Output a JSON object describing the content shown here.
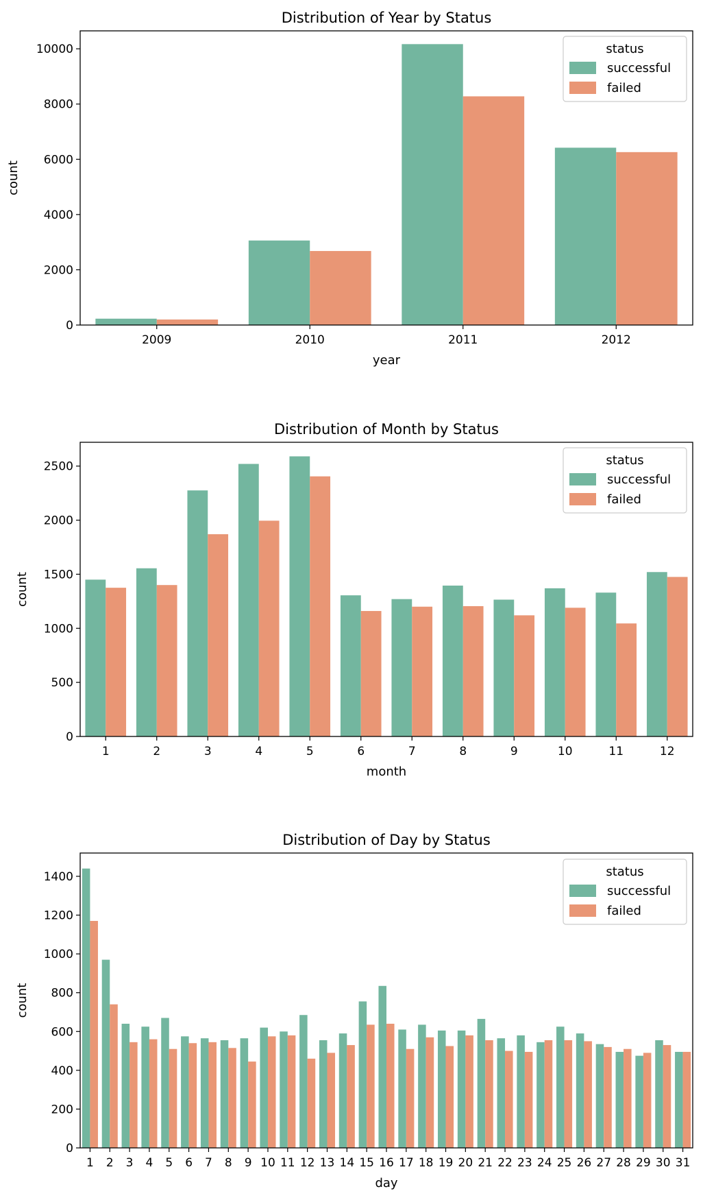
{
  "colors": {
    "successful": "#73b69f",
    "failed": "#e99675"
  },
  "chart_data": [
    {
      "type": "bar",
      "title": "Distribution of Year by Status",
      "xlabel": "year",
      "ylabel": "count",
      "categories": [
        "2009",
        "2010",
        "2011",
        "2012"
      ],
      "ylim": [
        0,
        10650
      ],
      "yticks": [
        0,
        2000,
        4000,
        6000,
        8000,
        10000
      ],
      "legend_title": "status",
      "legend_position": "upper right",
      "grid": false,
      "series": [
        {
          "name": "successful",
          "values": [
            230,
            3060,
            10170,
            6420
          ]
        },
        {
          "name": "failed",
          "values": [
            200,
            2680,
            8280,
            6260
          ]
        }
      ]
    },
    {
      "type": "bar",
      "title": "Distribution of Month by Status",
      "xlabel": "month",
      "ylabel": "count",
      "categories": [
        "1",
        "2",
        "3",
        "4",
        "5",
        "6",
        "7",
        "8",
        "9",
        "10",
        "11",
        "12"
      ],
      "ylim": [
        0,
        2720
      ],
      "yticks": [
        0,
        500,
        1000,
        1500,
        2000,
        2500
      ],
      "legend_title": "status",
      "legend_position": "upper right",
      "grid": false,
      "series": [
        {
          "name": "successful",
          "values": [
            1450,
            1555,
            2275,
            2520,
            2590,
            1305,
            1270,
            1395,
            1265,
            1370,
            1330,
            1520
          ]
        },
        {
          "name": "failed",
          "values": [
            1375,
            1400,
            1870,
            1995,
            2405,
            1160,
            1200,
            1205,
            1120,
            1190,
            1045,
            1475
          ]
        }
      ]
    },
    {
      "type": "bar",
      "title": "Distribution of Day by Status",
      "xlabel": "day",
      "ylabel": "count",
      "categories": [
        "1",
        "2",
        "3",
        "4",
        "5",
        "6",
        "7",
        "8",
        "9",
        "10",
        "11",
        "12",
        "13",
        "14",
        "15",
        "16",
        "17",
        "18",
        "19",
        "20",
        "21",
        "22",
        "23",
        "24",
        "25",
        "26",
        "27",
        "28",
        "29",
        "30",
        "31"
      ],
      "ylim": [
        0,
        1520
      ],
      "yticks": [
        0,
        200,
        400,
        600,
        800,
        1000,
        1200,
        1400
      ],
      "legend_title": "status",
      "legend_position": "upper right",
      "grid": false,
      "series": [
        {
          "name": "successful",
          "values": [
            1440,
            970,
            640,
            625,
            670,
            575,
            565,
            555,
            565,
            620,
            600,
            685,
            555,
            590,
            755,
            835,
            610,
            635,
            605,
            605,
            665,
            565,
            580,
            545,
            625,
            590,
            535,
            495,
            475,
            555,
            495
          ]
        },
        {
          "name": "failed",
          "values": [
            1170,
            740,
            545,
            560,
            510,
            540,
            545,
            515,
            445,
            575,
            580,
            460,
            490,
            530,
            635,
            640,
            510,
            570,
            525,
            580,
            555,
            500,
            495,
            555,
            555,
            550,
            520,
            510,
            490,
            530,
            495
          ]
        }
      ]
    }
  ]
}
